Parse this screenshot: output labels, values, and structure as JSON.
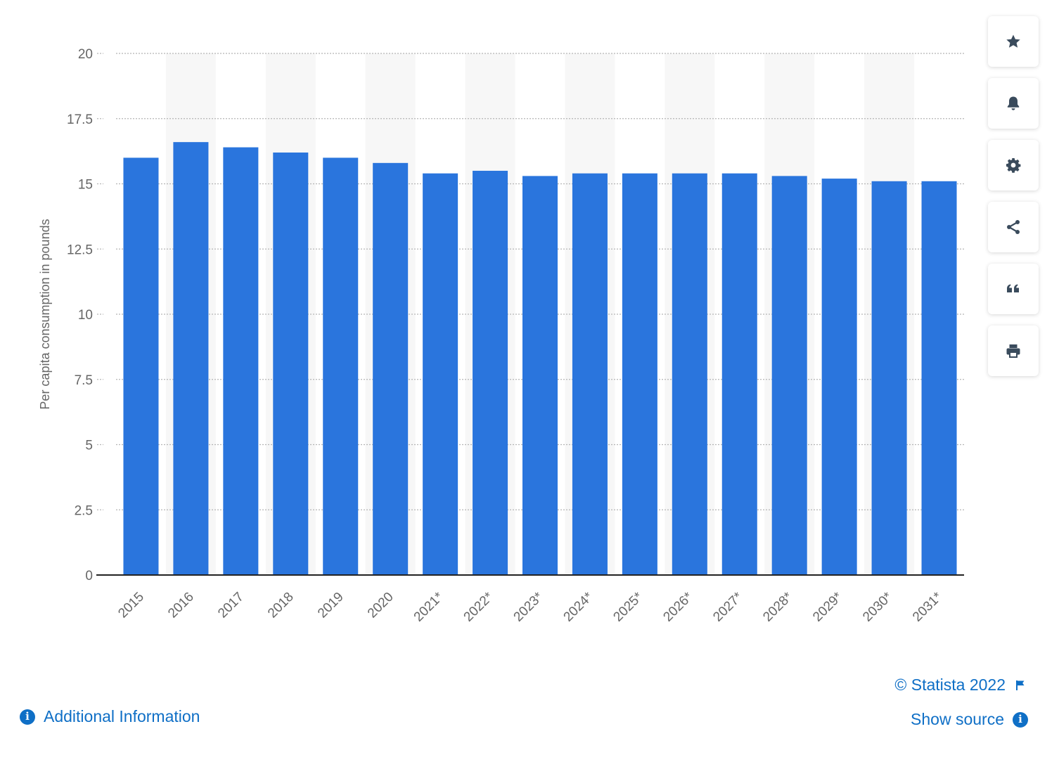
{
  "chart_data": {
    "type": "bar",
    "categories": [
      "2015",
      "2016",
      "2017",
      "2018",
      "2019",
      "2020",
      "2021*",
      "2022*",
      "2023*",
      "2024*",
      "2025*",
      "2026*",
      "2027*",
      "2028*",
      "2029*",
      "2030*",
      "2031*"
    ],
    "values": [
      16.0,
      16.6,
      16.4,
      16.2,
      16.0,
      15.8,
      15.4,
      15.5,
      15.3,
      15.4,
      15.4,
      15.4,
      15.4,
      15.3,
      15.2,
      15.1,
      15.1
    ],
    "ylabel": "Per capita consumption in pounds",
    "ylim": [
      0,
      20
    ],
    "yticks": [
      "0",
      "2.5",
      "5",
      "7.5",
      "10",
      "12.5",
      "15",
      "17.5",
      "20"
    ],
    "bar_color": "#2a75dd",
    "grid": true,
    "alternate_column_shading": true
  },
  "toolbar": {
    "buttons": [
      {
        "name": "favorite",
        "icon": "star-icon"
      },
      {
        "name": "notification",
        "icon": "bell-icon"
      },
      {
        "name": "settings",
        "icon": "gear-icon"
      },
      {
        "name": "share",
        "icon": "share-icon"
      },
      {
        "name": "cite",
        "icon": "quote-icon"
      },
      {
        "name": "print",
        "icon": "print-icon"
      }
    ],
    "icon_color": "#3a4b5c"
  },
  "footer": {
    "credit": "© Statista 2022",
    "show_source": "Show source",
    "additional_info": "Additional Information",
    "link_color": "#0f6fc6"
  }
}
